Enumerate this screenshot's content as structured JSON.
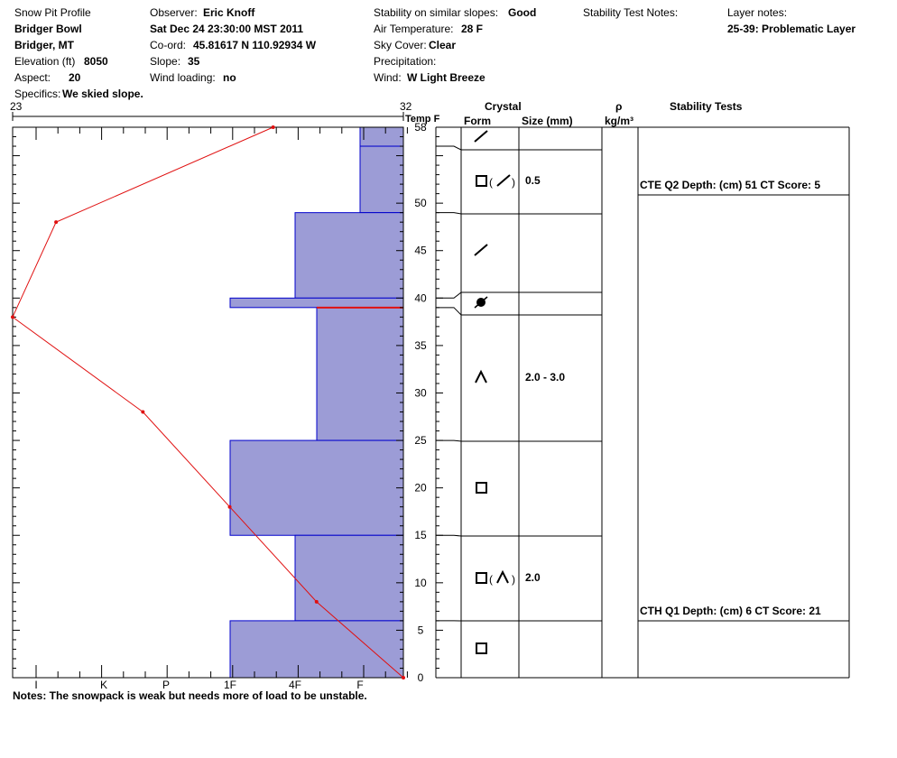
{
  "header": {
    "title": "Snow Pit Profile",
    "location": "Bridger Bowl",
    "region": "Bridger, MT",
    "elevation_label": "Elevation (ft)",
    "elevation_value": "8050",
    "aspect_label": "Aspect:",
    "aspect_value": "20",
    "specifics_label": "Specifics:",
    "specifics_value": "We skied slope.",
    "observer_label": "Observer:",
    "observer_value": "Eric Knoff",
    "datetime": "Sat Dec 24 23:30:00 MST 2011",
    "coord_label": "Co-ord:",
    "coord_value": "45.81617 N 110.92934 W",
    "slope_label": "Slope:",
    "slope_value": "35",
    "wind_loading_label": "Wind loading:",
    "wind_loading_value": "no",
    "stability_label": "Stability on similar slopes:",
    "stability_value": "Good",
    "air_temp_label": "Air Temperature:",
    "air_temp_value": "28 F",
    "sky_label": "Sky Cover:",
    "sky_value": "Clear",
    "precip_label": "Precipitation:",
    "precip_value": "",
    "wind_label": "Wind:",
    "wind_value": "W Light Breeze",
    "stab_test_notes_label": "Stability Test Notes:",
    "layer_notes_label": "Layer notes:",
    "layer_notes_value": "25-39: Problematic Layer"
  },
  "columns": {
    "temp_min": "23",
    "temp_max": "32",
    "temp_label": "Temp F",
    "crystal": "Crystal",
    "form": "Form",
    "size": "Size (mm)",
    "rho": "ρ",
    "density_unit": "kg/m³",
    "stability_tests": "Stability Tests"
  },
  "notes": "Notes:  The snowpack is weak but needs more of load to be unstable.",
  "colors": {
    "hardness_fill": "#9c9cd6",
    "hardness_edge": "#0000cc",
    "temp_line": "#e01010",
    "weak_layer": "#e01010"
  },
  "chart_data": {
    "type": "area",
    "depth_range": [
      0,
      58
    ],
    "depth_ticks": [
      0,
      5,
      10,
      15,
      20,
      25,
      30,
      35,
      40,
      45,
      50,
      58
    ],
    "hardness_ticks": [
      "I",
      "K",
      "P",
      "1F",
      "4F",
      "F"
    ],
    "temperature_range": [
      23,
      32
    ],
    "temperature_profile": [
      {
        "depth": 58,
        "temp": 29
      },
      {
        "depth": 48,
        "temp": 24
      },
      {
        "depth": 38,
        "temp": 23
      },
      {
        "depth": 28,
        "temp": 26
      },
      {
        "depth": 18,
        "temp": 28
      },
      {
        "depth": 8,
        "temp": 30
      },
      {
        "depth": 0,
        "temp": 32
      }
    ],
    "hardness_layers": [
      {
        "bottom": 56,
        "top": 58,
        "hardness": "F"
      },
      {
        "bottom": 49,
        "top": 56,
        "hardness": "F"
      },
      {
        "bottom": 40,
        "top": 49,
        "hardness": "4F"
      },
      {
        "bottom": 39,
        "top": 40,
        "hardness": "1F"
      },
      {
        "bottom": 25,
        "top": 39,
        "hardness": "4F-"
      },
      {
        "bottom": 15,
        "top": 25,
        "hardness": "1F"
      },
      {
        "bottom": 6,
        "top": 15,
        "hardness": "4F"
      },
      {
        "bottom": 0,
        "top": 6,
        "hardness": "1F"
      }
    ],
    "weak_layer_depth": 39,
    "crystal_layers": [
      {
        "form": "decomposing",
        "size": ""
      },
      {
        "form": "faceted/decomposing",
        "size": "0.5"
      },
      {
        "form": "decomposing",
        "size": ""
      },
      {
        "form": "rimed/graupel",
        "size": ""
      },
      {
        "form": "depth hoar",
        "size": "2.0 - 3.0"
      },
      {
        "form": "faceted",
        "size": ""
      },
      {
        "form": "faceted/depth hoar",
        "size": "2.0"
      },
      {
        "form": "faceted",
        "size": ""
      }
    ],
    "stability_tests": [
      {
        "depth": 51,
        "text": "CTE Q2 Depth: (cm) 51 CT Score: 5"
      },
      {
        "depth": 6,
        "text": "CTH Q1 Depth: (cm) 6 CT Score: 21"
      }
    ]
  }
}
